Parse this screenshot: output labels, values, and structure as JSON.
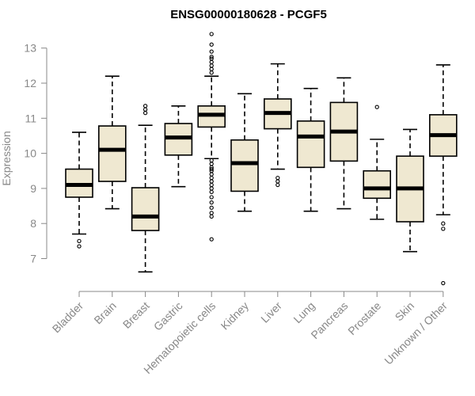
{
  "chart_data": {
    "type": "boxplot",
    "title": "ENSG00000180628 - PCGF5",
    "xlabel": "",
    "ylabel": "Expression",
    "ylim": [
      6.2,
      13.4
    ],
    "yticks": [
      7,
      8,
      9,
      10,
      11,
      12,
      13
    ],
    "grid": false,
    "colors": {
      "box_fill": "#efe8d1",
      "box_stroke": "#000000",
      "axis": "#888888"
    },
    "categories": [
      "Bladder",
      "Brain",
      "Breast",
      "Gastric",
      "Hematopoietic cells",
      "Kidney",
      "Liver",
      "Lung",
      "Pancreas",
      "Prostate",
      "Skin",
      "Unknown / Other"
    ],
    "boxes": [
      {
        "category": "Bladder",
        "whisker_low": 7.7,
        "q1": 8.75,
        "median": 9.1,
        "q3": 9.55,
        "whisker_high": 10.6,
        "outliers": [
          7.35,
          7.5
        ]
      },
      {
        "category": "Brain",
        "whisker_low": 8.42,
        "q1": 9.2,
        "median": 10.1,
        "q3": 10.78,
        "whisker_high": 12.2,
        "outliers": []
      },
      {
        "category": "Breast",
        "whisker_low": 6.62,
        "q1": 7.8,
        "median": 8.2,
        "q3": 9.02,
        "whisker_high": 10.8,
        "outliers": [
          11.15,
          11.25,
          11.35
        ]
      },
      {
        "category": "Gastric",
        "whisker_low": 9.05,
        "q1": 9.95,
        "median": 10.45,
        "q3": 10.85,
        "whisker_high": 11.35,
        "outliers": []
      },
      {
        "category": "Hematopoietic cells",
        "whisker_low": 9.85,
        "q1": 10.75,
        "median": 11.1,
        "q3": 11.35,
        "whisker_high": 12.2,
        "outliers": [
          7.55,
          8.2,
          8.3,
          8.45,
          8.6,
          8.75,
          8.9,
          9.0,
          9.1,
          9.2,
          9.3,
          9.4,
          9.5,
          9.55,
          9.6,
          9.7,
          9.8,
          12.3,
          12.4,
          12.5,
          12.6,
          12.7,
          12.75,
          12.9,
          13.1,
          13.4
        ]
      },
      {
        "category": "Kidney",
        "whisker_low": 8.35,
        "q1": 8.92,
        "median": 9.72,
        "q3": 10.38,
        "whisker_high": 11.7,
        "outliers": []
      },
      {
        "category": "Liver",
        "whisker_low": 9.55,
        "q1": 10.7,
        "median": 11.15,
        "q3": 11.55,
        "whisker_high": 12.55,
        "outliers": [
          9.1,
          9.2,
          9.3
        ]
      },
      {
        "category": "Lung",
        "whisker_low": 8.35,
        "q1": 9.6,
        "median": 10.48,
        "q3": 10.92,
        "whisker_high": 11.85,
        "outliers": []
      },
      {
        "category": "Pancreas",
        "whisker_low": 8.42,
        "q1": 9.78,
        "median": 10.62,
        "q3": 11.45,
        "whisker_high": 12.15,
        "outliers": []
      },
      {
        "category": "Prostate",
        "whisker_low": 8.12,
        "q1": 8.72,
        "median": 9.0,
        "q3": 9.5,
        "whisker_high": 10.4,
        "outliers": [
          11.32
        ]
      },
      {
        "category": "Skin",
        "whisker_low": 7.2,
        "q1": 8.05,
        "median": 9.0,
        "q3": 9.92,
        "whisker_high": 10.68,
        "outliers": []
      },
      {
        "category": "Unknown / Other",
        "whisker_low": 8.25,
        "q1": 9.92,
        "median": 10.52,
        "q3": 11.1,
        "whisker_high": 12.52,
        "outliers": [
          6.3,
          7.85,
          8.0
        ]
      }
    ]
  }
}
